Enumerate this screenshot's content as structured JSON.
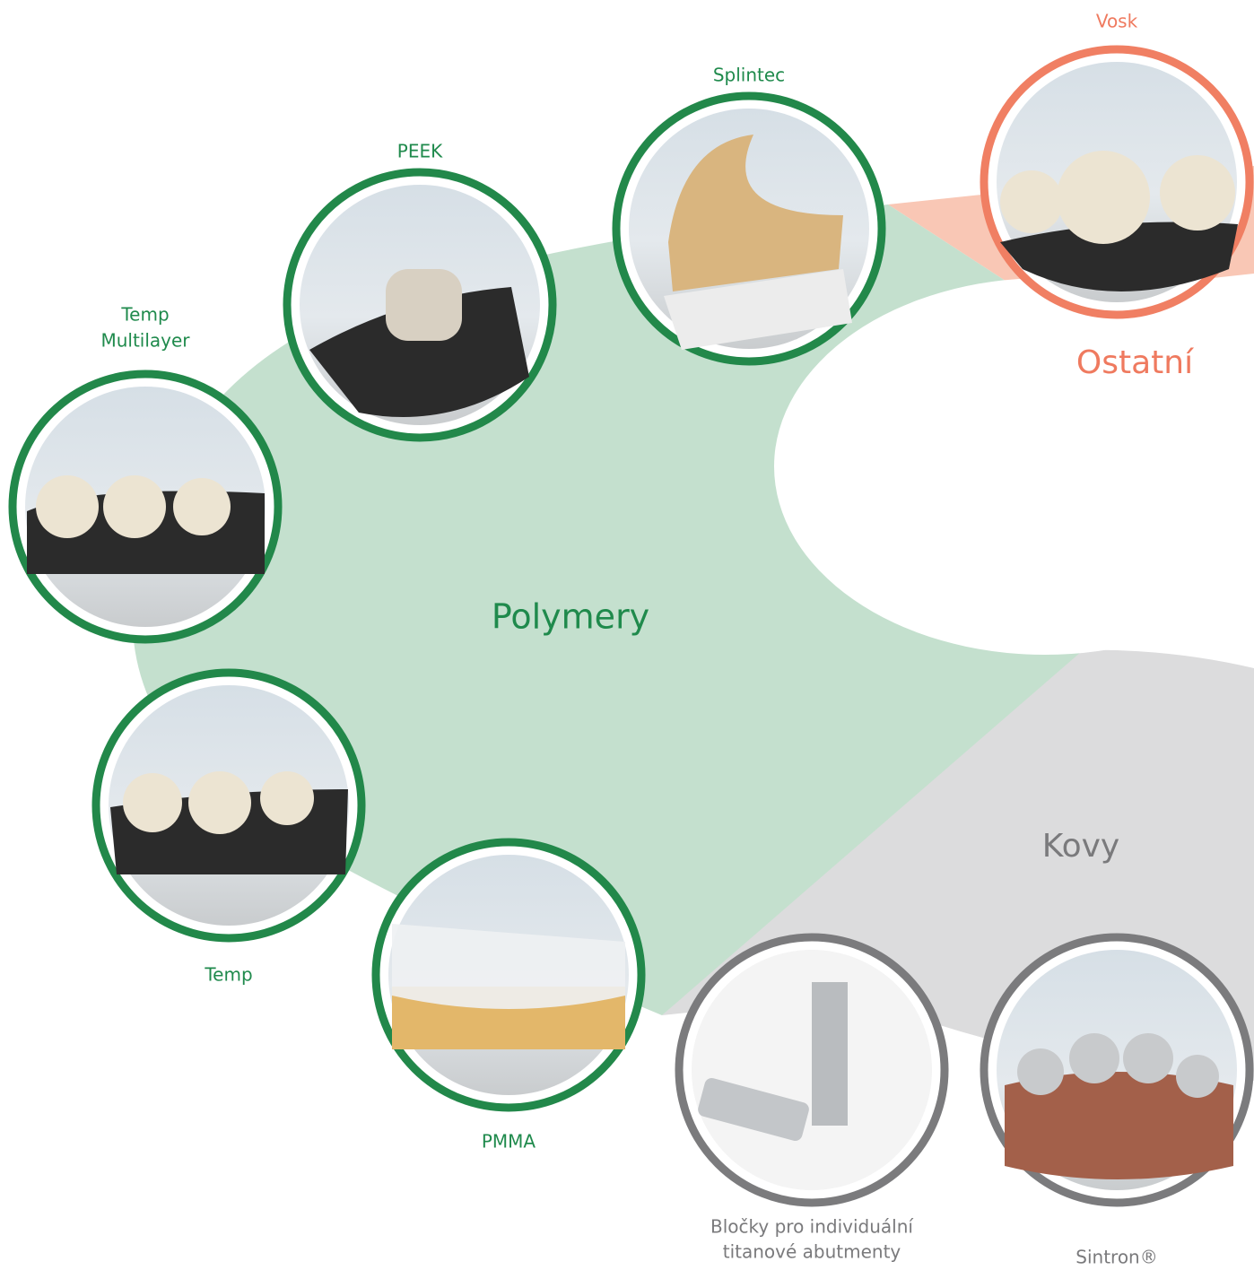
{
  "sections": [
    {
      "name": "Polymery",
      "items": [
        {
          "label": [
            "Temp",
            "Multilayer"
          ]
        },
        {
          "label": [
            "PEEK"
          ]
        },
        {
          "label": [
            "Splintec"
          ]
        },
        {
          "label": [
            "Temp"
          ]
        },
        {
          "label": [
            "PMMA"
          ]
        }
      ]
    },
    {
      "name": "Ostatní",
      "items": [
        {
          "label": [
            "Vosk"
          ]
        }
      ]
    },
    {
      "name": "Kovy",
      "items": [
        {
          "label": [
            "Bločky pro individuální",
            "titanové abutmenty"
          ]
        },
        {
          "label": [
            "Sintron®"
          ]
        }
      ]
    }
  ]
}
